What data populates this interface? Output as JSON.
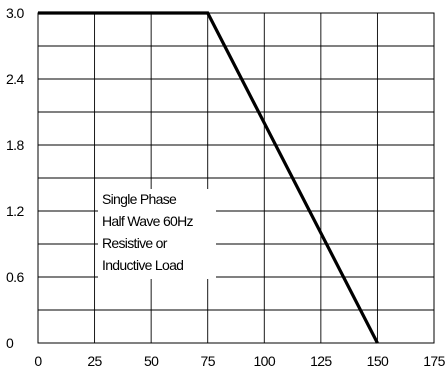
{
  "chart_data": {
    "type": "line",
    "title": "",
    "xlabel": "",
    "ylabel": "",
    "xlim": [
      0,
      175
    ],
    "ylim": [
      0,
      3.0
    ],
    "grid": true,
    "x_ticks": [
      "0",
      "25",
      "50",
      "75",
      "100",
      "125",
      "150",
      "175"
    ],
    "y_ticks": [
      "0",
      "0.6",
      "1.2",
      "1.8",
      "2.4",
      "3.0"
    ],
    "series": [
      {
        "x": [
          0,
          75,
          150
        ],
        "y": [
          3.0,
          3.0,
          0
        ],
        "color": "#000000"
      }
    ],
    "annotation": {
      "lines": [
        "Single Phase",
        "Half Wave 60Hz",
        "Resistive or",
        "Inductive Load"
      ]
    }
  }
}
